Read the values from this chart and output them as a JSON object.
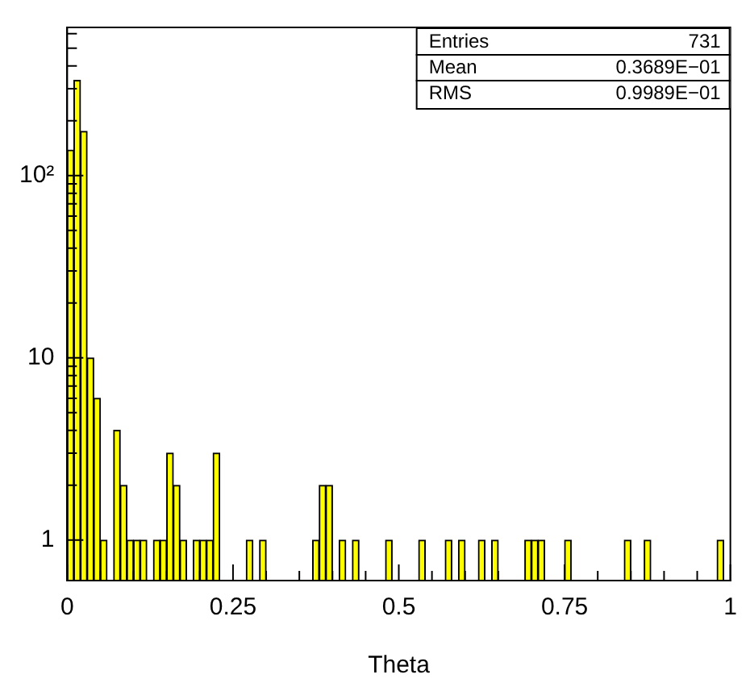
{
  "chart_data": {
    "type": "histogram",
    "xlabel": "Theta",
    "log": "y",
    "grid": false,
    "legend": false,
    "bins": [
      0,
      0.01,
      0.02,
      0.03,
      0.04,
      0.05,
      0.06,
      0.07,
      0.08,
      0.09,
      0.1,
      0.11,
      0.12,
      0.13,
      0.14,
      0.15,
      0.16,
      0.17,
      0.18,
      0.19,
      0.2,
      0.21,
      0.22,
      0.23,
      0.24,
      0.25,
      0.26,
      0.27,
      0.28,
      0.29,
      0.3,
      0.31,
      0.32,
      0.33,
      0.34,
      0.35,
      0.36,
      0.37,
      0.38,
      0.39,
      0.4,
      0.41,
      0.42,
      0.43,
      0.44,
      0.45,
      0.46,
      0.47,
      0.48,
      0.49,
      0.5,
      0.51,
      0.52,
      0.53,
      0.54,
      0.55,
      0.56,
      0.57,
      0.58,
      0.59,
      0.6,
      0.61,
      0.62,
      0.63,
      0.64,
      0.65,
      0.66,
      0.67,
      0.68,
      0.69,
      0.7,
      0.71,
      0.72,
      0.73,
      0.74,
      0.75,
      0.76,
      0.77,
      0.78,
      0.79,
      0.8,
      0.81,
      0.82,
      0.83,
      0.84,
      0.85,
      0.86,
      0.87,
      0.88,
      0.89,
      0.9,
      0.91,
      0.92,
      0.93,
      0.94,
      0.95,
      0.96,
      0.97,
      0.98,
      0.99,
      1
    ],
    "values": [
      138,
      333,
      175,
      10,
      6,
      1,
      null,
      4,
      2,
      1,
      1,
      1,
      null,
      1,
      1,
      3,
      2,
      1,
      null,
      1,
      1,
      1,
      3,
      null,
      null,
      null,
      null,
      1,
      null,
      1,
      null,
      null,
      null,
      null,
      null,
      null,
      null,
      1,
      2,
      2,
      null,
      1,
      null,
      1,
      null,
      null,
      null,
      null,
      1,
      null,
      null,
      null,
      null,
      1,
      null,
      null,
      null,
      1,
      null,
      1,
      null,
      null,
      1,
      null,
      1,
      null,
      null,
      null,
      null,
      1,
      1,
      1,
      null,
      null,
      null,
      1,
      null,
      null,
      null,
      null,
      null,
      null,
      null,
      null,
      1,
      null,
      null,
      1,
      null,
      null,
      null,
      null,
      null,
      null,
      null,
      null,
      null,
      null,
      1,
      null
    ],
    "color": "#ffff00",
    "xlim": [
      0,
      1
    ],
    "xticks": [
      0,
      {
        "value": 0.05,
        "label": null
      },
      {
        "value": 0.1,
        "label": null
      },
      {
        "value": 0.15,
        "label": null
      },
      {
        "value": 0.2,
        "label": null
      },
      0.25,
      {
        "value": 0.3,
        "label": null
      },
      {
        "value": 0.35,
        "label": null
      },
      {
        "value": 0.4,
        "label": null
      },
      {
        "value": 0.45,
        "label": null
      },
      0.5,
      {
        "value": 0.55,
        "label": null
      },
      {
        "value": 0.6,
        "label": null
      },
      {
        "value": 0.65,
        "label": null
      },
      {
        "value": 0.7,
        "label": null
      },
      0.75,
      {
        "value": 0.8,
        "label": null
      },
      {
        "value": 0.85,
        "label": null
      },
      {
        "value": 0.9,
        "label": null
      },
      {
        "value": 0.95,
        "label": null
      },
      1
    ],
    "ylim": [
      0.6,
      650
    ],
    "yticks": [
      1,
      {
        "value": 2,
        "label": null
      },
      {
        "value": 3,
        "label": null
      },
      {
        "value": 4,
        "label": null
      },
      {
        "value": 5,
        "label": null
      },
      {
        "value": 6,
        "label": null
      },
      {
        "value": 7,
        "label": null
      },
      {
        "value": 8,
        "label": null
      },
      {
        "value": 9,
        "label": null
      },
      10,
      {
        "value": 20,
        "label": null
      },
      {
        "value": 30,
        "label": null
      },
      {
        "value": 40,
        "label": null
      },
      {
        "value": 50,
        "label": null
      },
      {
        "value": 60,
        "label": null
      },
      {
        "value": 70,
        "label": null
      },
      {
        "value": 80,
        "label": null
      },
      {
        "value": 90,
        "label": null
      },
      {
        "value": 100,
        "label": "10²"
      },
      {
        "value": 200,
        "label": null
      },
      {
        "value": 300,
        "label": null
      },
      {
        "value": 400,
        "label": null
      },
      {
        "value": 500,
        "label": null
      },
      {
        "value": 600,
        "label": null
      }
    ],
    "annotations": [
      "Entries",
      "731",
      "Mean",
      "0.3689E−01",
      "RMS",
      "0.9989E−01"
    ]
  }
}
